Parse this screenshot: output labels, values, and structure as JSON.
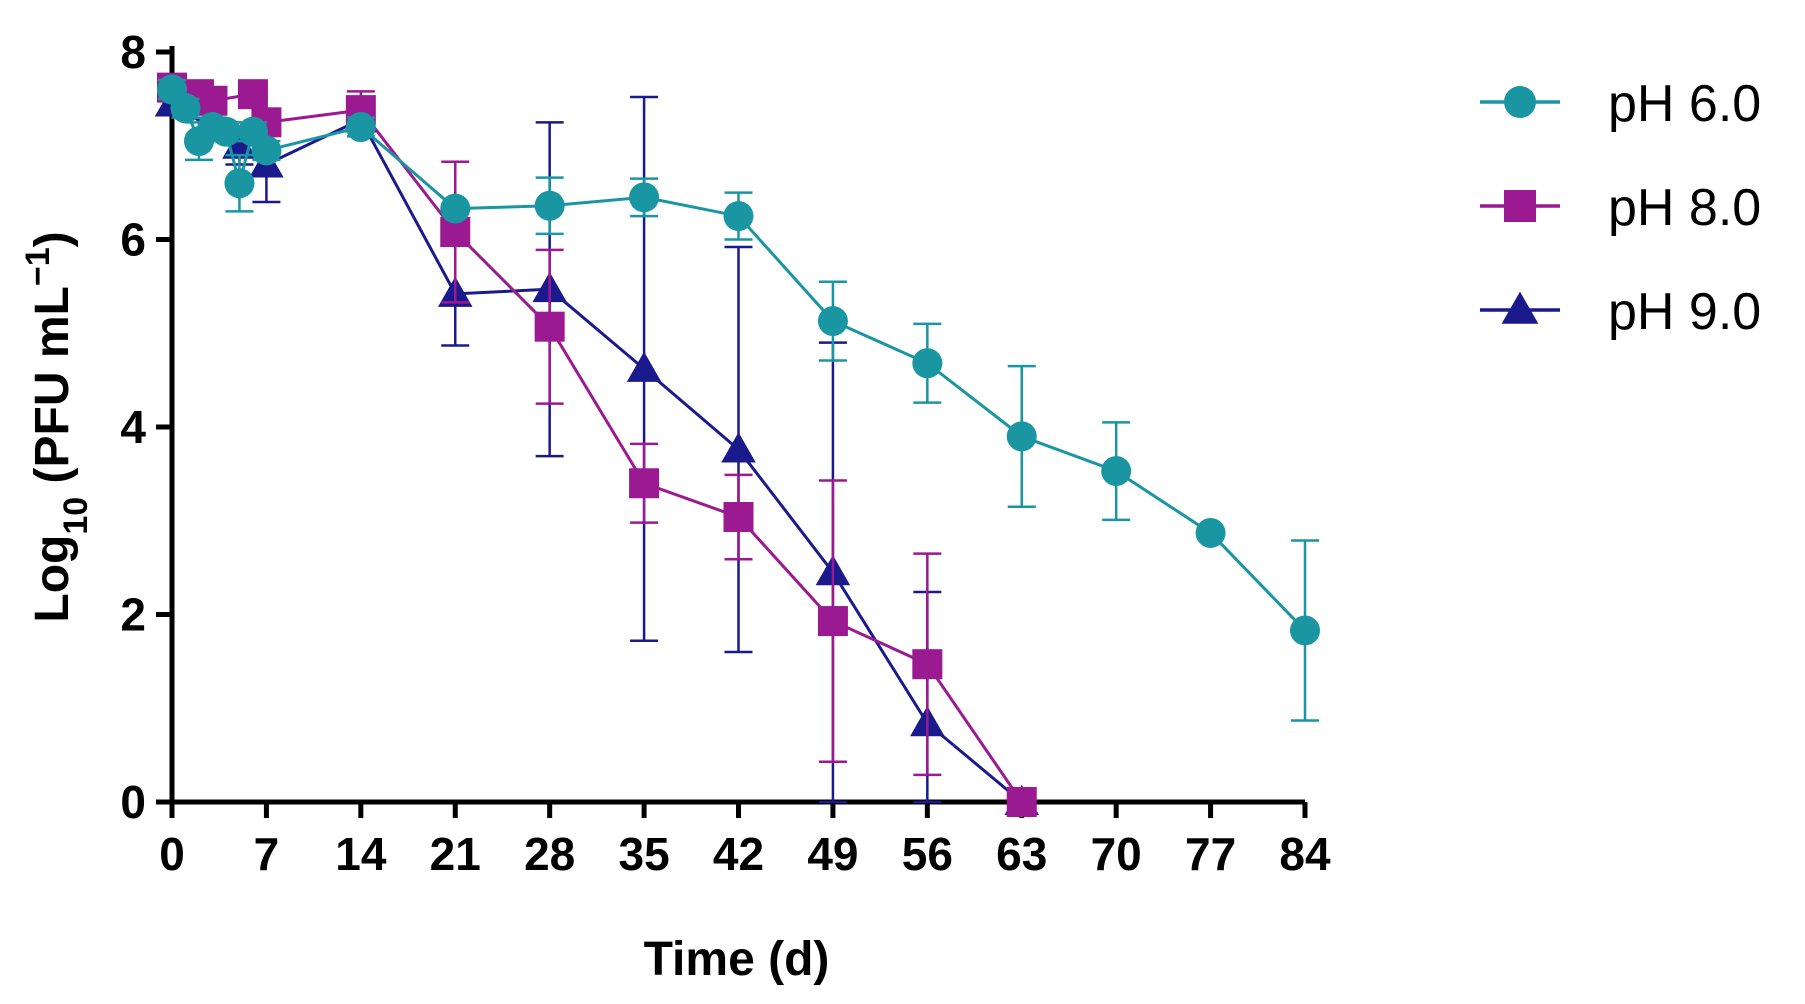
{
  "chart_data": {
    "type": "line",
    "xlabel": "Time (d)",
    "ylabel_main": "Log",
    "ylabel_sub": "10",
    "ylabel_unit": " (PFU mL",
    "ylabel_sup": "−1",
    "ylabel_close": ")",
    "xlim": [
      0,
      84
    ],
    "ylim": [
      0,
      8
    ],
    "xticks": [
      0,
      7,
      14,
      21,
      28,
      35,
      42,
      49,
      56,
      63,
      70,
      77,
      84
    ],
    "yticks": [
      0,
      2,
      4,
      6,
      8
    ],
    "grid": false,
    "legend_position": "top-right",
    "series": [
      {
        "name": "pH 6.0",
        "color": "#1a96a3",
        "marker": "circle",
        "points": [
          {
            "x": 0,
            "y": 7.6,
            "err": 0.1
          },
          {
            "x": 1,
            "y": 7.4,
            "err": 0.1
          },
          {
            "x": 2,
            "y": 7.05,
            "err": 0.2
          },
          {
            "x": 3,
            "y": 7.2,
            "err": 0.1
          },
          {
            "x": 4,
            "y": 7.15,
            "err": 0.1
          },
          {
            "x": 5,
            "y": 6.6,
            "err": 0.3
          },
          {
            "x": 6,
            "y": 7.15,
            "err": 0.1
          },
          {
            "x": 7,
            "y": 6.95,
            "err": 0.1
          },
          {
            "x": 14,
            "y": 7.2,
            "err": 0.1
          },
          {
            "x": 21,
            "y": 6.33,
            "err": 0.05
          },
          {
            "x": 28,
            "y": 6.36,
            "err": 0.3
          },
          {
            "x": 35,
            "y": 6.45,
            "err": 0.2
          },
          {
            "x": 42,
            "y": 6.25,
            "err": 0.25
          },
          {
            "x": 49,
            "y": 5.13,
            "err": 0.42
          },
          {
            "x": 56,
            "y": 4.68,
            "err": 0.42
          },
          {
            "x": 63,
            "y": 3.9,
            "err": 0.75
          },
          {
            "x": 70,
            "y": 3.53,
            "err": 0.52
          },
          {
            "x": 77,
            "y": 2.87,
            "err": 0
          },
          {
            "x": 84,
            "y": 1.83,
            "err": 0.96
          }
        ]
      },
      {
        "name": "pH 8.0",
        "color": "#9b1a91",
        "marker": "square",
        "points": [
          {
            "x": 0,
            "y": 7.62,
            "err": 0.05
          },
          {
            "x": 2,
            "y": 7.55,
            "err": 0.05
          },
          {
            "x": 3,
            "y": 7.48,
            "err": 0.05
          },
          {
            "x": 6,
            "y": 7.55,
            "err": 0.05
          },
          {
            "x": 7,
            "y": 7.25,
            "err": 0.05
          },
          {
            "x": 14,
            "y": 7.38,
            "err": 0.2
          },
          {
            "x": 21,
            "y": 6.08,
            "err": 0.75
          },
          {
            "x": 28,
            "y": 5.07,
            "err": 0.82
          },
          {
            "x": 35,
            "y": 3.4,
            "err": 0.42
          },
          {
            "x": 42,
            "y": 3.04,
            "err": 0.45
          },
          {
            "x": 49,
            "y": 1.93,
            "err": 1.5
          },
          {
            "x": 56,
            "y": 1.47,
            "err": 1.18
          },
          {
            "x": 63,
            "y": 0.0,
            "err": 0
          }
        ]
      },
      {
        "name": "pH 9.0",
        "color": "#1a1a8c",
        "marker": "triangle",
        "points": [
          {
            "x": 0,
            "y": 7.45,
            "err": 0.1
          },
          {
            "x": 5,
            "y": 7.0,
            "err": 0.2
          },
          {
            "x": 7,
            "y": 6.8,
            "err": 0.4
          },
          {
            "x": 14,
            "y": 7.28,
            "err": 0.1
          },
          {
            "x": 21,
            "y": 5.42,
            "err": 0.55
          },
          {
            "x": 28,
            "y": 5.47,
            "err": 1.78
          },
          {
            "x": 35,
            "y": 4.62,
            "err": 2.9
          },
          {
            "x": 42,
            "y": 3.76,
            "err": 2.16
          },
          {
            "x": 49,
            "y": 2.45,
            "err": 2.45
          },
          {
            "x": 56,
            "y": 0.84,
            "err": 1.4
          },
          {
            "x": 63,
            "y": 0.0,
            "err": 0
          }
        ]
      }
    ]
  }
}
